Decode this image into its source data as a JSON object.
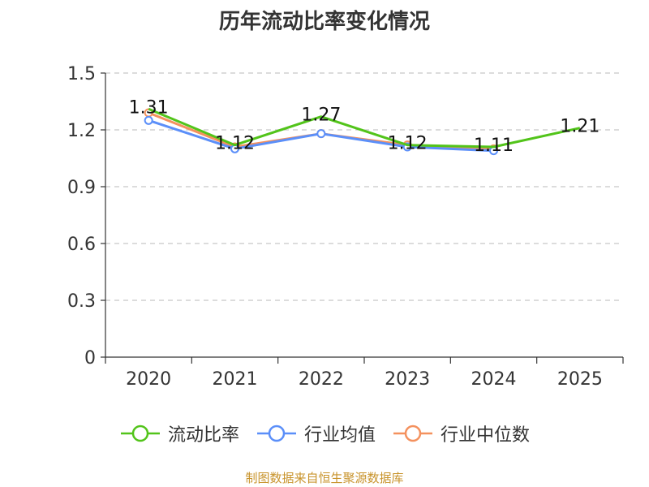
{
  "chart_data": {
    "type": "line",
    "title": "历年流动比率变化情况",
    "categories": [
      "2020",
      "2021",
      "2022",
      "2023",
      "2024",
      "2025"
    ],
    "series": [
      {
        "name": "流动比率",
        "color": "#52c41a",
        "values": [
          1.31,
          1.12,
          1.27,
          1.12,
          1.11,
          1.21
        ],
        "show_labels": true
      },
      {
        "name": "行业均值",
        "color": "#5b8ff9",
        "values": [
          1.25,
          1.1,
          1.18,
          1.11,
          1.09,
          null
        ],
        "show_labels": false
      },
      {
        "name": "行业中位数",
        "color": "#f4915e",
        "values": [
          1.29,
          1.11,
          1.18,
          1.12,
          1.1,
          null
        ],
        "show_labels": false
      }
    ],
    "y_ticks": [
      "0",
      "0.3",
      "0.6",
      "0.9",
      "1.2",
      "1.5"
    ],
    "ylim": [
      0,
      1.5
    ],
    "grid": true,
    "legend": "bottom-center"
  },
  "source": "制图数据来自恒生聚源数据库"
}
